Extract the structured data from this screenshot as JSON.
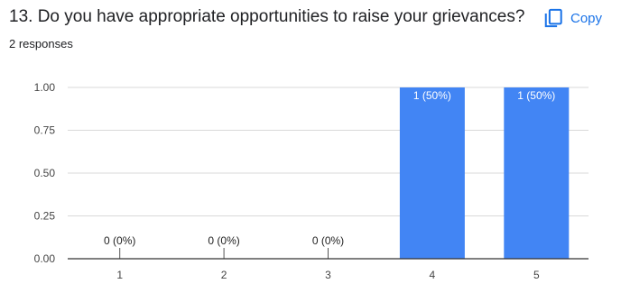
{
  "question": {
    "title": "13. Do you have appropriate opportunities to raise your grievances?",
    "responses": "2 responses"
  },
  "toolbar": {
    "copy_label": "Copy",
    "copy_icon": "copy-icon"
  },
  "colors": {
    "bar": "#4285f4",
    "accent": "#1a73e8",
    "axis": "#333333",
    "grid": "#d9d9d9"
  },
  "chart_data": {
    "type": "bar",
    "categories": [
      "1",
      "2",
      "3",
      "4",
      "5"
    ],
    "values": [
      0,
      0,
      0,
      1,
      1
    ],
    "data_labels": [
      "0 (0%)",
      "0 (0%)",
      "0 (0%)",
      "1 (50%)",
      "1 (50%)"
    ],
    "yticks": [
      "0.00",
      "0.25",
      "0.50",
      "0.75",
      "1.00"
    ],
    "ylim": [
      0,
      1
    ],
    "grid": true
  }
}
